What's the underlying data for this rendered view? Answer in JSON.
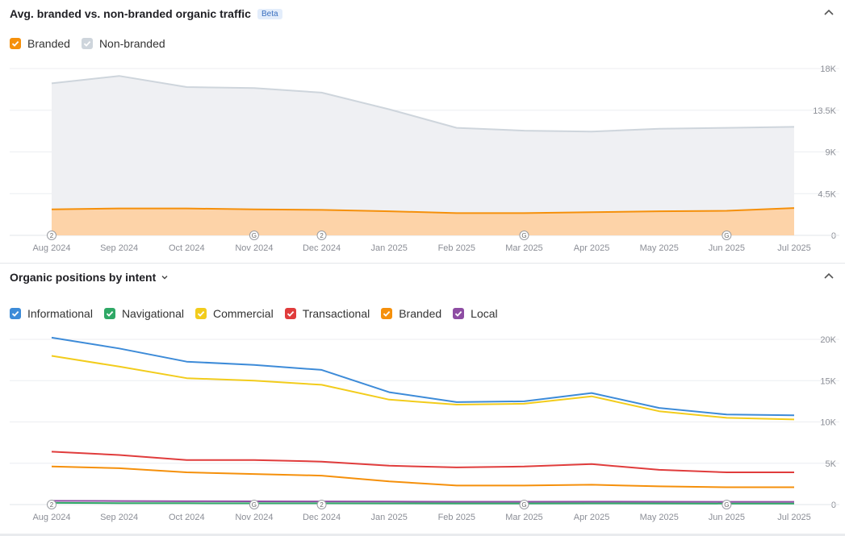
{
  "panel1": {
    "title": "Avg. branded vs. non-branded organic traffic",
    "badge": "Beta",
    "legend": [
      {
        "label": "Branded",
        "color": "#f5900b",
        "checked": true
      },
      {
        "label": "Non-branded",
        "color": "#ced5dc",
        "checked": true
      }
    ]
  },
  "panel2": {
    "title": "Organic positions by intent",
    "legend": [
      {
        "label": "Informational",
        "color": "#3d8bd8",
        "checked": true
      },
      {
        "label": "Navigational",
        "color": "#2fa866",
        "checked": true
      },
      {
        "label": "Commercial",
        "color": "#f2cc1c",
        "checked": true
      },
      {
        "label": "Transactional",
        "color": "#e03c3c",
        "checked": true
      },
      {
        "label": "Branded",
        "color": "#f5900b",
        "checked": true
      },
      {
        "label": "Local",
        "color": "#8e4da3",
        "checked": true
      }
    ]
  },
  "chart_data": [
    {
      "type": "area",
      "categories": [
        "Aug 2024",
        "Sep 2024",
        "Oct 2024",
        "Nov 2024",
        "Dec 2024",
        "Jan 2025",
        "Feb 2025",
        "Mar 2025",
        "Apr 2025",
        "May 2025",
        "Jun 2025",
        "Jul 2025"
      ],
      "ylim": [
        0,
        18000
      ],
      "yticks": [
        0,
        4500,
        9000,
        13500,
        18000
      ],
      "ytick_labels": [
        "0",
        "4.5K",
        "9K",
        "13.5K",
        "18K"
      ],
      "grid": true,
      "series": [
        {
          "name": "Non-branded",
          "color": "#ced5dc",
          "fill": "#eff0f3",
          "values": [
            16400,
            17200,
            16000,
            15900,
            15400,
            13600,
            11600,
            11300,
            11200,
            11500,
            11600,
            11700
          ]
        },
        {
          "name": "Branded",
          "color": "#f5900b",
          "fill": "#fdd3a8",
          "values": [
            2800,
            2900,
            2900,
            2800,
            2750,
            2600,
            2400,
            2400,
            2500,
            2600,
            2650,
            2950
          ]
        }
      ],
      "annotations": [
        {
          "category": "Aug 2024",
          "label": "2"
        },
        {
          "category": "Nov 2024",
          "label": "G"
        },
        {
          "category": "Dec 2024",
          "label": "2"
        },
        {
          "category": "Mar 2025",
          "label": "G"
        },
        {
          "category": "Jun 2025",
          "label": "G"
        }
      ]
    },
    {
      "type": "line",
      "categories": [
        "Aug 2024",
        "Sep 2024",
        "Oct 2024",
        "Nov 2024",
        "Dec 2024",
        "Jan 2025",
        "Feb 2025",
        "Mar 2025",
        "Apr 2025",
        "May 2025",
        "Jun 2025",
        "Jul 2025"
      ],
      "ylim": [
        0,
        20000
      ],
      "yticks": [
        0,
        5000,
        10000,
        15000,
        20000
      ],
      "ytick_labels": [
        "0",
        "5K",
        "10K",
        "15K",
        "20K"
      ],
      "grid": true,
      "series": [
        {
          "name": "Informational",
          "color": "#3d8bd8",
          "values": [
            20200,
            18900,
            17300,
            16900,
            16300,
            13600,
            12400,
            12500,
            13500,
            11700,
            10900,
            10800
          ]
        },
        {
          "name": "Navigational",
          "color": "#2fa866",
          "values": [
            200,
            180,
            170,
            160,
            160,
            150,
            140,
            140,
            150,
            140,
            130,
            130
          ]
        },
        {
          "name": "Commercial",
          "color": "#f2cc1c",
          "values": [
            18000,
            16700,
            15300,
            15000,
            14500,
            12700,
            12100,
            12200,
            13100,
            11300,
            10500,
            10300
          ]
        },
        {
          "name": "Transactional",
          "color": "#e03c3c",
          "values": [
            6400,
            6000,
            5400,
            5400,
            5200,
            4700,
            4500,
            4600,
            4900,
            4200,
            3900,
            3900
          ]
        },
        {
          "name": "Branded",
          "color": "#f5900b",
          "values": [
            4600,
            4400,
            3900,
            3700,
            3500,
            2800,
            2300,
            2300,
            2400,
            2200,
            2100,
            2100
          ]
        },
        {
          "name": "Local",
          "color": "#8e4da3",
          "values": [
            450,
            430,
            400,
            390,
            380,
            360,
            340,
            340,
            350,
            340,
            330,
            330
          ]
        }
      ],
      "annotations": [
        {
          "category": "Aug 2024",
          "label": "2"
        },
        {
          "category": "Nov 2024",
          "label": "G"
        },
        {
          "category": "Dec 2024",
          "label": "2"
        },
        {
          "category": "Mar 2025",
          "label": "G"
        },
        {
          "category": "Jun 2025",
          "label": "G"
        }
      ]
    }
  ]
}
